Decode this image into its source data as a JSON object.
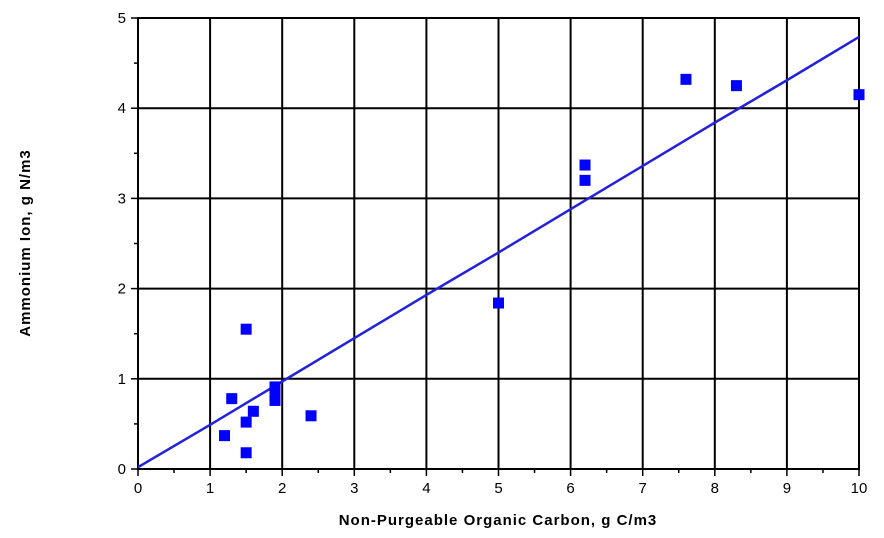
{
  "chart_data": {
    "type": "scatter",
    "title": "",
    "xlabel": "Non-Purgeable Organic Carbon,  g C/m3",
    "ylabel": "Ammonium Ion,  g N/m3",
    "xlim": [
      0,
      10
    ],
    "ylim": [
      0,
      5
    ],
    "x_ticks": [
      "0",
      "1",
      "2",
      "3",
      "4",
      "5",
      "6",
      "7",
      "8",
      "9",
      "10"
    ],
    "y_ticks": [
      "0",
      "1",
      "2",
      "3",
      "4",
      "5"
    ],
    "grid": true,
    "legend": "none",
    "series": [
      {
        "marker": "square",
        "color": "#0000ff",
        "points": [
          {
            "x": 1.2,
            "y": 0.37
          },
          {
            "x": 1.3,
            "y": 0.78
          },
          {
            "x": 1.5,
            "y": 1.55
          },
          {
            "x": 1.5,
            "y": 0.52
          },
          {
            "x": 1.5,
            "y": 0.18
          },
          {
            "x": 1.6,
            "y": 0.64
          },
          {
            "x": 1.9,
            "y": 0.91
          },
          {
            "x": 1.9,
            "y": 0.84
          },
          {
            "x": 1.9,
            "y": 0.76
          },
          {
            "x": 2.4,
            "y": 0.59
          },
          {
            "x": 5.0,
            "y": 1.84
          },
          {
            "x": 6.2,
            "y": 3.37
          },
          {
            "x": 6.2,
            "y": 3.2
          },
          {
            "x": 7.6,
            "y": 4.32
          },
          {
            "x": 8.3,
            "y": 4.25
          },
          {
            "x": 10.0,
            "y": 4.15
          }
        ]
      }
    ],
    "fit_line": {
      "color": "#2222dd",
      "points": [
        {
          "x": 0,
          "y": 0.02
        },
        {
          "x": 1,
          "y": 0.49
        },
        {
          "x": 2,
          "y": 0.97
        },
        {
          "x": 3,
          "y": 1.45
        },
        {
          "x": 4,
          "y": 1.93
        },
        {
          "x": 5,
          "y": 2.4
        },
        {
          "x": 6,
          "y": 2.88
        },
        {
          "x": 7,
          "y": 3.36
        },
        {
          "x": 8,
          "y": 3.84
        },
        {
          "x": 9,
          "y": 4.31
        },
        {
          "x": 10,
          "y": 4.79
        }
      ]
    }
  }
}
